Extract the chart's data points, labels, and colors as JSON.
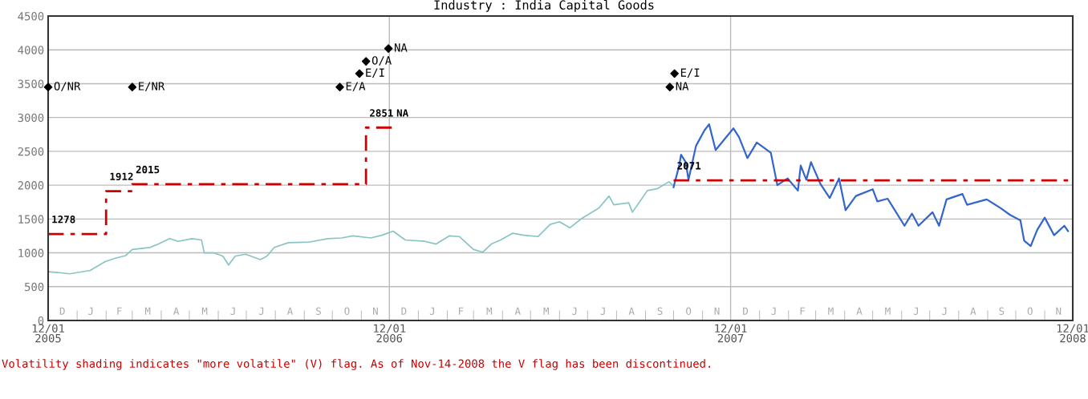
{
  "chart_data": {
    "type": "line",
    "title": "Industry : India Capital Goods",
    "xlim": [
      "2005-12-01",
      "2008-12-01"
    ],
    "ylim": [
      0,
      4500
    ],
    "yticks": [
      0,
      500,
      1000,
      1500,
      2000,
      2500,
      3000,
      3500,
      4000,
      4500
    ],
    "xticks": [
      {
        "value": "2005-12-01",
        "label": "12/01\n2005"
      },
      {
        "value": "2006-12-01",
        "label": "12/01\n2006"
      },
      {
        "value": "2007-12-01",
        "label": "12/01\n2007"
      },
      {
        "value": "2008-12-01",
        "label": "12/01\n2008"
      },
      {
        "value": "2006-01-01",
        "label": null
      },
      {
        "value": "2006-02-01",
        "label": null
      },
      {
        "value": "2006-03-01",
        "label": null
      },
      {
        "value": "2006-04-01",
        "label": null
      },
      {
        "value": "2006-05-01",
        "label": null
      },
      {
        "value": "2006-06-01",
        "label": null
      },
      {
        "value": "2006-07-01",
        "label": null
      },
      {
        "value": "2006-08-01",
        "label": null
      },
      {
        "value": "2006-09-01",
        "label": null
      },
      {
        "value": "2006-10-01",
        "label": null
      },
      {
        "value": "2006-11-01",
        "label": null
      },
      {
        "value": "2007-01-01",
        "label": null
      },
      {
        "value": "2007-02-01",
        "label": null
      },
      {
        "value": "2007-03-01",
        "label": null
      },
      {
        "value": "2007-04-01",
        "label": null
      },
      {
        "value": "2007-05-01",
        "label": null
      },
      {
        "value": "2007-06-01",
        "label": null
      },
      {
        "value": "2007-07-01",
        "label": null
      },
      {
        "value": "2007-08-01",
        "label": null
      },
      {
        "value": "2007-09-01",
        "label": null
      },
      {
        "value": "2007-10-01",
        "label": null
      },
      {
        "value": "2007-11-01",
        "label": null
      },
      {
        "value": "2008-01-01",
        "label": null
      },
      {
        "value": "2008-02-01",
        "label": null
      },
      {
        "value": "2008-03-01",
        "label": null
      },
      {
        "value": "2008-04-01",
        "label": null
      },
      {
        "value": "2008-05-01",
        "label": null
      },
      {
        "value": "2008-06-01",
        "label": null
      },
      {
        "value": "2008-07-01",
        "label": null
      },
      {
        "value": "2008-08-01",
        "label": null
      },
      {
        "value": "2008-09-01",
        "label": null
      },
      {
        "value": "2008-10-01",
        "label": null
      },
      {
        "value": "2008-11-01",
        "label": null
      }
    ],
    "grid": true,
    "legend": false,
    "series": [
      {
        "color": "#88c4c4",
        "x": [
          "2005-12-01",
          "2005-12-11",
          "2005-12-24",
          "2006-01-15",
          "2006-01-31",
          "2006-02-11",
          "2006-02-22",
          "2006-03-01",
          "2006-03-20",
          "2006-03-29",
          "2006-04-10",
          "2006-04-19",
          "2006-05-04",
          "2006-05-14",
          "2006-05-17",
          "2006-05-27",
          "2006-06-06",
          "2006-06-12",
          "2006-06-19",
          "2006-06-30",
          "2006-07-16",
          "2006-07-23",
          "2006-07-31",
          "2006-08-15",
          "2006-09-07",
          "2006-09-26",
          "2006-10-11",
          "2006-10-23",
          "2006-11-11",
          "2006-11-23",
          "2006-12-05",
          "2006-12-18",
          "2007-01-08",
          "2007-01-20",
          "2007-02-03",
          "2007-02-14",
          "2007-03-01",
          "2007-03-11",
          "2007-03-20",
          "2007-03-30",
          "2007-04-12",
          "2007-04-24",
          "2007-05-09",
          "2007-05-22",
          "2007-06-01",
          "2007-06-12",
          "2007-06-25",
          "2007-07-13",
          "2007-07-24",
          "2007-07-29",
          "2007-08-14",
          "2007-08-18",
          "2007-09-03",
          "2007-09-14",
          "2007-09-26",
          "2007-09-30"
        ],
        "values": [
          720,
          710,
          690,
          740,
          870,
          920,
          960,
          1050,
          1080,
          1130,
          1210,
          1170,
          1210,
          1190,
          1000,
          1000,
          950,
          820,
          950,
          980,
          900,
          950,
          1080,
          1150,
          1160,
          1210,
          1220,
          1250,
          1220,
          1260,
          1320,
          1190,
          1170,
          1130,
          1250,
          1240,
          1050,
          1010,
          1130,
          1190,
          1290,
          1260,
          1240,
          1420,
          1460,
          1370,
          1510,
          1660,
          1840,
          1710,
          1740,
          1600,
          1920,
          1950,
          2050,
          2000
        ]
      },
      {
        "color": "#3366cc",
        "x": [
          "2007-10-01",
          "2007-10-07",
          "2007-10-09",
          "2007-10-14",
          "2007-10-17",
          "2007-10-25",
          "2007-11-03",
          "2007-11-08",
          "2007-11-15",
          "2007-12-04",
          "2007-12-10",
          "2007-12-19",
          "2007-12-29",
          "2008-01-13",
          "2008-01-20",
          "2008-01-31",
          "2008-02-11",
          "2008-02-14",
          "2008-02-20",
          "2008-02-25",
          "2008-03-06",
          "2008-03-16",
          "2008-03-26",
          "2008-04-02",
          "2008-04-13",
          "2008-05-01",
          "2008-05-06",
          "2008-05-17",
          "2008-06-04",
          "2008-06-12",
          "2008-06-19",
          "2008-07-04",
          "2008-07-11",
          "2008-07-19",
          "2008-08-05",
          "2008-08-10",
          "2008-08-31",
          "2008-09-15",
          "2008-09-25",
          "2008-10-06",
          "2008-10-10",
          "2008-10-17",
          "2008-10-24",
          "2008-11-01",
          "2008-11-11",
          "2008-11-22",
          "2008-11-26"
        ],
        "values": [
          1970,
          2290,
          2450,
          2340,
          2080,
          2580,
          2810,
          2900,
          2520,
          2840,
          2710,
          2400,
          2630,
          2480,
          2000,
          2100,
          1920,
          2290,
          2080,
          2340,
          2020,
          1810,
          2100,
          1630,
          1840,
          1940,
          1760,
          1800,
          1400,
          1580,
          1400,
          1600,
          1400,
          1790,
          1870,
          1710,
          1790,
          1660,
          1560,
          1480,
          1180,
          1100,
          1340,
          1520,
          1260,
          1400,
          1320
        ]
      },
      {
        "type": "step",
        "color": "#cc0000",
        "line_style": "dashed",
        "x": [
          "2005-12-01",
          "2006-02-01",
          "2006-03-01",
          "2006-11-06",
          "2006-12-05",
          "2006-12-06",
          "2007-10-01",
          "2008-12-01"
        ],
        "values": [
          1278,
          1912,
          2015,
          2851,
          2851,
          null,
          2071,
          2071
        ]
      },
      {
        "type": "scatter",
        "color": "#000000",
        "marker": "diamond",
        "x": [
          "2005-12-01",
          "2006-03-01",
          "2006-10-09",
          "2006-10-30",
          "2006-11-06",
          "2006-11-30",
          "2007-10-02",
          "2007-09-27"
        ],
        "values": [
          3450,
          3450,
          3450,
          3650,
          3830,
          4020,
          3650,
          3450
        ],
        "value_labels": [
          "O/NR",
          "E/NR",
          "E/A",
          "E/I",
          "O/A",
          "NA",
          "E/I",
          "NA"
        ]
      }
    ],
    "annotations": [
      {
        "text": "1278",
        "x": "2005-12-01",
        "y": 1278
      },
      {
        "text": "1912",
        "x": "2006-02-01",
        "y": 1912
      },
      {
        "text": "2015",
        "x": "2006-03-01",
        "y": 2015
      },
      {
        "text": "2851",
        "x": "2006-11-06",
        "y": 2851
      },
      {
        "text": "NA",
        "x": "2006-12-05",
        "y": 2851
      },
      {
        "text": "2071",
        "x": "2007-10-01",
        "y": 2071
      },
      "Volatility shading indicates \"more volatile\" (V) flag. As of Nov-14-2008 the V flag has been discontinued.",
      "D",
      "J",
      "F",
      "M",
      "A",
      "M",
      "J",
      "J",
      "A",
      "S",
      "O",
      "N",
      "D",
      "J",
      "F",
      "M",
      "A",
      "M",
      "J",
      "J",
      "A",
      "S",
      "O",
      "N",
      "D",
      "J",
      "F",
      "M",
      "A",
      "M",
      "J",
      "J",
      "A",
      "S",
      "O",
      "N"
    ]
  }
}
